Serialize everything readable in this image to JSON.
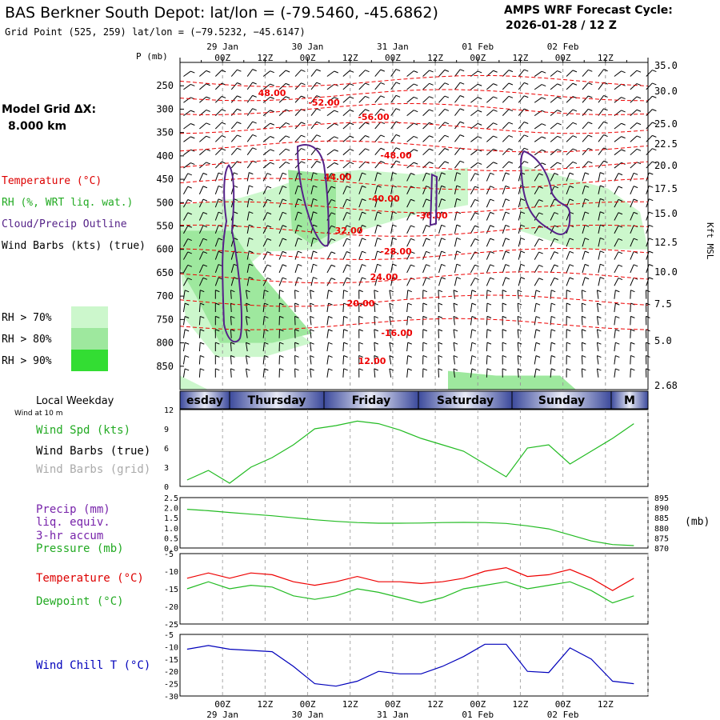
{
  "header": {
    "title": "BAS Berkner South Depot:  lat/lon = (-79.5460, -45.6862)",
    "subtitle": "Grid Point (525, 259) lat/lon = (−79.5232, −45.6147)",
    "cycle_title": "AMPS WRF Forecast Cycle:",
    "cycle_value": "2026-01-28 / 12  Z"
  },
  "legend": {
    "model_grid_label": "Model Grid ΔX:",
    "model_grid_value": "8.000 km",
    "temperature": "Temperature (°C)",
    "rh": "RH (%, WRT liq. wat.)",
    "cloud": "Cloud/Precip Outline",
    "wind_barbs": "Wind Barbs (kts) (true)",
    "rh_bins": [
      {
        "label": "RH > 70%",
        "color": "#ccf7cc"
      },
      {
        "label": "RH > 80%",
        "color": "#9ee89e"
      },
      {
        "label": "RH > 90%",
        "color": "#33dd33"
      }
    ]
  },
  "colors": {
    "temperature": "#ee0000",
    "rh_fill": "#99e699",
    "cloud": "#552288",
    "wind_speed": "#22bb22",
    "pressure": "#22bb22",
    "dewpoint": "#22bb22",
    "wind_chill": "#0000bb",
    "weekday_band": "#3c4a9c"
  },
  "time_axis": {
    "top_date_labels": [
      "29 Jan",
      "30 Jan",
      "31 Jan",
      "01 Feb",
      "02 Feb"
    ],
    "hour_labels": [
      "00Z",
      "12Z",
      "00Z",
      "12Z",
      "00Z",
      "12Z",
      "00Z",
      "12Z",
      "00Z",
      "12Z"
    ],
    "bottom_date_labels": [
      "29 Jan",
      "30 Jan",
      "31 Jan",
      "01 Feb",
      "02 Feb"
    ]
  },
  "weekday": {
    "label": "Local Weekday",
    "wind_note": "Wind at 10 m",
    "days": [
      "esday",
      "Thursday",
      "Friday",
      "Saturday",
      "Sunday",
      "M"
    ]
  },
  "chart_data": [
    {
      "type": "heatmap",
      "title": "Vertical cross-section",
      "ylabel": "P (mb)",
      "y2label": "Kft MSL",
      "yticks": [
        250,
        300,
        350,
        400,
        450,
        500,
        550,
        600,
        650,
        700,
        750,
        800,
        850
      ],
      "y2ticks": [
        "35.0",
        "30.0",
        "25.0",
        "22.5",
        "20.0",
        "17.5",
        "15.0",
        "12.5",
        "10.0",
        "7.5",
        "5.0",
        "2.68"
      ],
      "ylim": [
        200,
        900
      ],
      "temperature_contour_labels": [
        "48.00",
        "-52.00",
        "-56.00",
        "-48.00",
        "44.00",
        "-40.00",
        "-36.00",
        "32.00",
        "-28.00",
        "24.00",
        "20.00",
        "-16.00",
        "12.00"
      ]
    },
    {
      "type": "line",
      "title": "Wind",
      "legend": [
        "Wind Spd (kts)",
        "Wind Barbs (true)",
        "Wind Barbs (grid)"
      ],
      "yticks": [
        "12",
        "9",
        "6",
        "3",
        "0"
      ],
      "ylim": [
        0,
        12
      ],
      "x": [
        0,
        6,
        12,
        18,
        24,
        30,
        36,
        42,
        48,
        54,
        60,
        66,
        72,
        78,
        84,
        90,
        96,
        102,
        108,
        114,
        120,
        126
      ],
      "series": [
        {
          "name": "Wind Spd (kts)",
          "values": [
            1.0,
            2.5,
            0.5,
            3.0,
            4.5,
            6.5,
            9.0,
            9.5,
            10.2,
            9.8,
            8.8,
            7.5,
            6.5,
            5.5,
            3.5,
            1.5,
            6.0,
            6.5,
            3.5,
            5.5,
            7.5,
            9.8
          ]
        }
      ]
    },
    {
      "type": "line",
      "title": "Precip / Pressure",
      "legend": [
        "Precip (mm)",
        "liq. equiv.",
        "3-hr accum",
        "Pressure (mb)"
      ],
      "yticks": [
        "2.5",
        "2.0",
        "1.5",
        "1.0",
        "0.5",
        "0.0"
      ],
      "y2ticks": [
        "895",
        "890",
        "885",
        "880",
        "875",
        "870"
      ],
      "y2label": "(mb)",
      "ylim": [
        0,
        2.5
      ],
      "x": [
        0,
        6,
        12,
        18,
        24,
        30,
        36,
        42,
        48,
        54,
        60,
        66,
        72,
        78,
        84,
        90,
        96,
        102,
        108,
        114,
        120,
        126
      ],
      "series": [
        {
          "name": "Pressure (mb)",
          "values": [
            889.2,
            888.5,
            887.6,
            886.8,
            886.0,
            885.0,
            884.0,
            883.2,
            882.6,
            882.3,
            882.3,
            882.4,
            882.6,
            882.7,
            882.6,
            882.2,
            881.0,
            879.5,
            876.5,
            873.5,
            871.7,
            871.2
          ]
        }
      ]
    },
    {
      "type": "line",
      "title": "Temperature / Dewpoint",
      "legend": [
        "Temperature (°C)",
        "Dewpoint (°C)"
      ],
      "yticks": [
        "-5",
        "-10",
        "-15",
        "-20",
        "-25"
      ],
      "ylim": [
        -25,
        -5
      ],
      "x": [
        0,
        6,
        12,
        18,
        24,
        30,
        36,
        42,
        48,
        54,
        60,
        66,
        72,
        78,
        84,
        90,
        96,
        102,
        108,
        114,
        120,
        126
      ],
      "series": [
        {
          "name": "Temperature (°C)",
          "values": [
            -12,
            -10.5,
            -12,
            -10.5,
            -11,
            -13,
            -14,
            -13,
            -11.5,
            -13,
            -13,
            -13.5,
            -13,
            -12,
            -10,
            -9,
            -11.5,
            -11,
            -9.5,
            -12,
            -15.5,
            -12
          ]
        },
        {
          "name": "Dewpoint (°C)",
          "values": [
            -15,
            -13,
            -15,
            -14,
            -14.5,
            -17,
            -18,
            -17,
            -15,
            -16,
            -17.5,
            -19,
            -17.5,
            -15,
            -14,
            -13,
            -15,
            -14,
            -13,
            -15.5,
            -19,
            -17
          ]
        }
      ]
    },
    {
      "type": "line",
      "title": "Wind Chill",
      "legend": [
        "Wind Chill T (°C)"
      ],
      "yticks": [
        "-5",
        "-10",
        "-15",
        "-20",
        "-25",
        "-30"
      ],
      "ylim": [
        -30,
        -5
      ],
      "x": [
        0,
        6,
        12,
        18,
        24,
        30,
        36,
        42,
        48,
        54,
        60,
        66,
        72,
        78,
        84,
        90,
        96,
        102,
        108,
        114,
        120,
        126
      ],
      "series": [
        {
          "name": "Wind Chill T (°C)",
          "values": [
            -11,
            -9.5,
            -11,
            -11.5,
            -12,
            -18,
            -25,
            -26,
            -24,
            -20,
            -21,
            -21,
            -18,
            -14,
            -9,
            -9,
            -20,
            -20.5,
            -10.5,
            -15,
            -24,
            -25
          ]
        }
      ]
    }
  ]
}
